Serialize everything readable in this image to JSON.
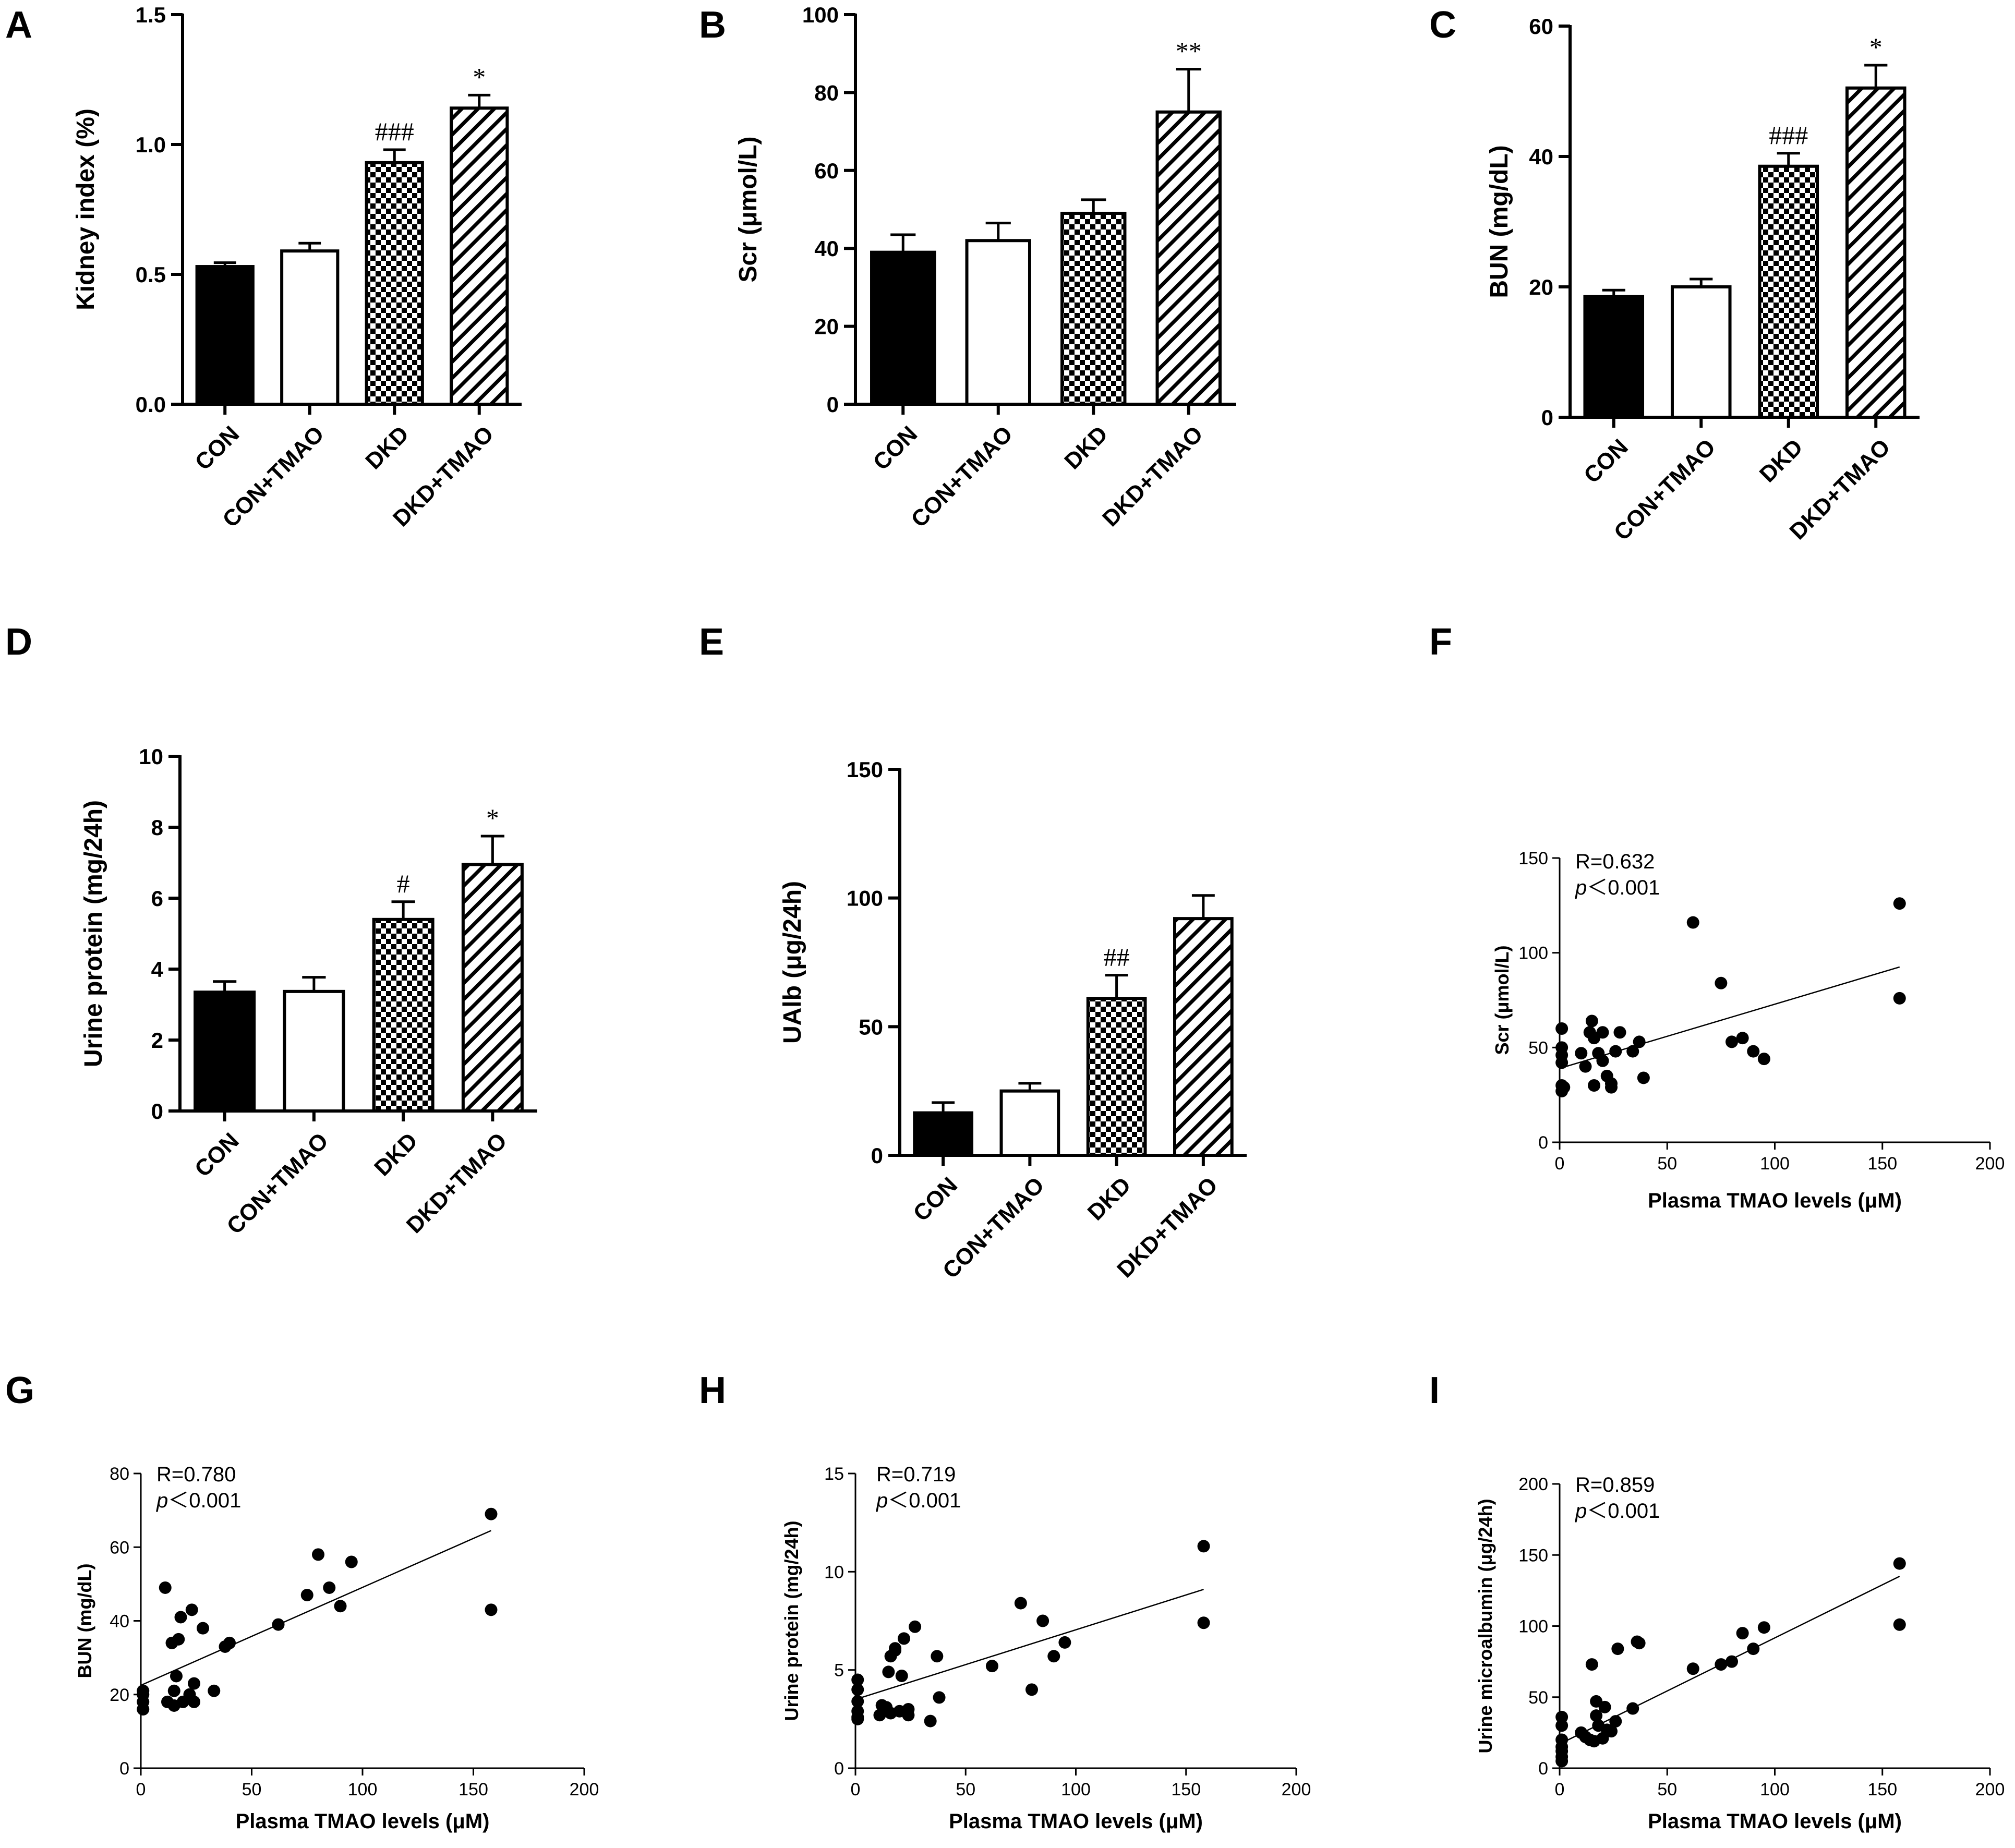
{
  "figure": {
    "bar_categories": [
      "CON",
      "CON+TMAO",
      "DKD",
      "DKD+TMAO"
    ]
  },
  "chart_data": [
    {
      "panel": "A",
      "type": "bar",
      "categories": [
        "CON",
        "CON+TMAO",
        "DKD",
        "DKD+TMAO"
      ],
      "values": [
        0.53,
        0.59,
        0.93,
        1.14
      ],
      "errors": [
        0.015,
        0.03,
        0.05,
        0.05
      ],
      "annotations": [
        "",
        "",
        "###",
        "*"
      ],
      "ylabel": "Kidney index (%)",
      "ylim": [
        0,
        1.5
      ],
      "yticks": [
        0.0,
        0.5,
        1.0,
        1.5
      ],
      "ytick_labels": [
        "0.0",
        "0.5",
        "1.0",
        "1.5"
      ]
    },
    {
      "panel": "B",
      "type": "bar",
      "categories": [
        "CON",
        "CON+TMAO",
        "DKD",
        "DKD+TMAO"
      ],
      "values": [
        39,
        42,
        49,
        75
      ],
      "errors": [
        4.5,
        4.5,
        3.5,
        11
      ],
      "annotations": [
        "",
        "",
        "",
        "**"
      ],
      "ylabel": "Scr (μmol/L)",
      "ylim": [
        0,
        100
      ],
      "yticks": [
        0,
        20,
        40,
        60,
        80,
        100
      ],
      "ytick_labels": [
        "0",
        "20",
        "40",
        "60",
        "80",
        "100"
      ]
    },
    {
      "panel": "C",
      "type": "bar",
      "categories": [
        "CON",
        "CON+TMAO",
        "DKD",
        "DKD+TMAO"
      ],
      "values": [
        18.5,
        20,
        38.5,
        50.5
      ],
      "errors": [
        1,
        1.2,
        2,
        3.5
      ],
      "annotations": [
        "",
        "",
        "###",
        "*"
      ],
      "ylabel": "BUN (mg/dL)",
      "ylim": [
        0,
        60
      ],
      "yticks": [
        0,
        20,
        40,
        60
      ],
      "ytick_labels": [
        "0",
        "20",
        "40",
        "60"
      ]
    },
    {
      "panel": "D",
      "type": "bar",
      "categories": [
        "CON",
        "CON+TMAO",
        "DKD",
        "DKD+TMAO"
      ],
      "values": [
        3.35,
        3.37,
        5.4,
        6.95
      ],
      "errors": [
        0.3,
        0.4,
        0.5,
        0.8
      ],
      "annotations": [
        "",
        "",
        "#",
        "*"
      ],
      "ylabel": "Urine protein (mg/24h)",
      "ylim": [
        0,
        10
      ],
      "yticks": [
        0,
        2,
        4,
        6,
        8,
        10
      ],
      "ytick_labels": [
        "0",
        "2",
        "4",
        "6",
        "8",
        "10"
      ]
    },
    {
      "panel": "E",
      "type": "bar",
      "categories": [
        "CON",
        "CON+TMAO",
        "DKD",
        "DKD+TMAO"
      ],
      "values": [
        16.5,
        25,
        61,
        92
      ],
      "errors": [
        4,
        3,
        9,
        9
      ],
      "annotations": [
        "",
        "",
        "##",
        ""
      ],
      "ylabel": "UAlb (μg/24h)",
      "ylim": [
        0,
        150
      ],
      "yticks": [
        0,
        50,
        100,
        150
      ],
      "ytick_labels": [
        "0",
        "50",
        "100",
        "150"
      ]
    },
    {
      "panel": "F",
      "type": "scatter",
      "stat_r": "R=0.632",
      "stat_p_italic": "p",
      "stat_p_rest": "＜0.001",
      "xlabel": "Plasma TMAO levels (μM)",
      "ylabel": "Scr (μmol/L)",
      "xlim": [
        0,
        200
      ],
      "ylim": [
        0,
        150
      ],
      "xticks": [
        0,
        50,
        100,
        150,
        200
      ],
      "xtick_labels": [
        "0",
        "50",
        "100",
        "150",
        "200"
      ],
      "yticks": [
        0,
        50,
        100,
        150
      ],
      "ytick_labels": [
        "0",
        "50",
        "100",
        "150"
      ],
      "fit": {
        "x": [
          0,
          158
        ],
        "y": [
          39,
          92.5
        ]
      },
      "points": [
        [
          1,
          60
        ],
        [
          1,
          50
        ],
        [
          1,
          46
        ],
        [
          1,
          42
        ],
        [
          1,
          30
        ],
        [
          1,
          27
        ],
        [
          2,
          29
        ],
        [
          10,
          47
        ],
        [
          12,
          40
        ],
        [
          14,
          58
        ],
        [
          15,
          64
        ],
        [
          16,
          30
        ],
        [
          16,
          55
        ],
        [
          18,
          47
        ],
        [
          20,
          43
        ],
        [
          20,
          58
        ],
        [
          22,
          35
        ],
        [
          24,
          29
        ],
        [
          24,
          31
        ],
        [
          26,
          48
        ],
        [
          28,
          58
        ],
        [
          34,
          48
        ],
        [
          37,
          53
        ],
        [
          39,
          34
        ],
        [
          62,
          116
        ],
        [
          75,
          84
        ],
        [
          80,
          53
        ],
        [
          85,
          55
        ],
        [
          90,
          48
        ],
        [
          95,
          44
        ],
        [
          158,
          126
        ],
        [
          158,
          76
        ]
      ]
    },
    {
      "panel": "G",
      "type": "scatter",
      "stat_r": "R=0.780",
      "stat_p_italic": "p",
      "stat_p_rest": "＜0.001",
      "xlabel": "Plasma TMAO levels (μM)",
      "ylabel": "BUN (mg/dL)",
      "xlim": [
        0,
        200
      ],
      "ylim": [
        0,
        80
      ],
      "xticks": [
        0,
        50,
        100,
        150,
        200
      ],
      "xtick_labels": [
        "0",
        "50",
        "100",
        "150",
        "200"
      ],
      "yticks": [
        0,
        20,
        40,
        60,
        80
      ],
      "ytick_labels": [
        "0",
        "20",
        "40",
        "60",
        "80"
      ],
      "fit": {
        "x": [
          0,
          158
        ],
        "y": [
          22.5,
          64.5
        ]
      },
      "points": [
        [
          1,
          21
        ],
        [
          1,
          20
        ],
        [
          1,
          18
        ],
        [
          1,
          16
        ],
        [
          11,
          49
        ],
        [
          12,
          18
        ],
        [
          14,
          34
        ],
        [
          15,
          21
        ],
        [
          15,
          17
        ],
        [
          16,
          25
        ],
        [
          17,
          35
        ],
        [
          18,
          41
        ],
        [
          19,
          18
        ],
        [
          22,
          20
        ],
        [
          23,
          43
        ],
        [
          24,
          23
        ],
        [
          24,
          18
        ],
        [
          28,
          38
        ],
        [
          33,
          21
        ],
        [
          38,
          33
        ],
        [
          40,
          34
        ],
        [
          62,
          39
        ],
        [
          75,
          47
        ],
        [
          80,
          58
        ],
        [
          85,
          49
        ],
        [
          90,
          44
        ],
        [
          95,
          56
        ],
        [
          158,
          69
        ],
        [
          158,
          43
        ]
      ]
    },
    {
      "panel": "H",
      "type": "scatter",
      "stat_r": "R=0.719",
      "stat_p_italic": "p",
      "stat_p_rest": "＜0.001",
      "xlabel": "Plasma TMAO levels (μM)",
      "ylabel": "Urine protein (mg/24h)",
      "xlim": [
        0,
        200
      ],
      "ylim": [
        0,
        15
      ],
      "xticks": [
        0,
        50,
        100,
        150,
        200
      ],
      "xtick_labels": [
        "0",
        "50",
        "100",
        "150",
        "200"
      ],
      "yticks": [
        0,
        5,
        10,
        15
      ],
      "ytick_labels": [
        "0",
        "5",
        "10",
        "15"
      ],
      "fit": {
        "x": [
          0,
          158
        ],
        "y": [
          3.5,
          9.1
        ]
      },
      "points": [
        [
          1,
          4.5
        ],
        [
          1,
          4
        ],
        [
          1,
          3.4
        ],
        [
          1,
          2.9
        ],
        [
          1,
          2.6
        ],
        [
          1,
          2.5
        ],
        [
          11,
          2.7
        ],
        [
          12,
          3.2
        ],
        [
          14,
          3.1
        ],
        [
          15,
          4.9
        ],
        [
          16,
          2.8
        ],
        [
          16,
          5.7
        ],
        [
          18,
          6
        ],
        [
          18,
          6.1
        ],
        [
          20,
          2.9
        ],
        [
          21,
          4.7
        ],
        [
          22,
          6.6
        ],
        [
          24,
          2.7
        ],
        [
          24,
          3
        ],
        [
          27,
          7.2
        ],
        [
          34,
          2.4
        ],
        [
          37,
          5.7
        ],
        [
          38,
          3.6
        ],
        [
          62,
          5.2
        ],
        [
          75,
          8.4
        ],
        [
          80,
          4
        ],
        [
          85,
          7.5
        ],
        [
          90,
          5.7
        ],
        [
          95,
          6.4
        ],
        [
          158,
          11.3
        ],
        [
          158,
          7.4
        ]
      ]
    },
    {
      "panel": "I",
      "type": "scatter",
      "stat_r": "R=0.859",
      "stat_p_italic": "p",
      "stat_p_rest": "＜0.001",
      "xlabel": "Plasma TMAO levels (μM)",
      "ylabel": "Urine microalbumin (μg/24h)",
      "xlim": [
        0,
        200
      ],
      "ylim": [
        0,
        200
      ],
      "xticks": [
        0,
        50,
        100,
        150,
        200
      ],
      "xtick_labels": [
        "0",
        "50",
        "100",
        "150",
        "200"
      ],
      "yticks": [
        0,
        50,
        100,
        150,
        200
      ],
      "ytick_labels": [
        "0",
        "50",
        "100",
        "150",
        "200"
      ],
      "fit": {
        "x": [
          0,
          158
        ],
        "y": [
          17,
          135
        ]
      },
      "points": [
        [
          1,
          36
        ],
        [
          1,
          30
        ],
        [
          1,
          20
        ],
        [
          1,
          15
        ],
        [
          1,
          12
        ],
        [
          1,
          8
        ],
        [
          1,
          5
        ],
        [
          10,
          25
        ],
        [
          12,
          22
        ],
        [
          14,
          20
        ],
        [
          15,
          73
        ],
        [
          16,
          19
        ],
        [
          17,
          37
        ],
        [
          17,
          47
        ],
        [
          18,
          30
        ],
        [
          20,
          21
        ],
        [
          21,
          43
        ],
        [
          22,
          27
        ],
        [
          24,
          26
        ],
        [
          26,
          33
        ],
        [
          27,
          84
        ],
        [
          34,
          42
        ],
        [
          36,
          89
        ],
        [
          37,
          88
        ],
        [
          62,
          70
        ],
        [
          75,
          73
        ],
        [
          80,
          75
        ],
        [
          85,
          95
        ],
        [
          90,
          84
        ],
        [
          95,
          99
        ],
        [
          158,
          144
        ],
        [
          158,
          101
        ]
      ]
    }
  ]
}
